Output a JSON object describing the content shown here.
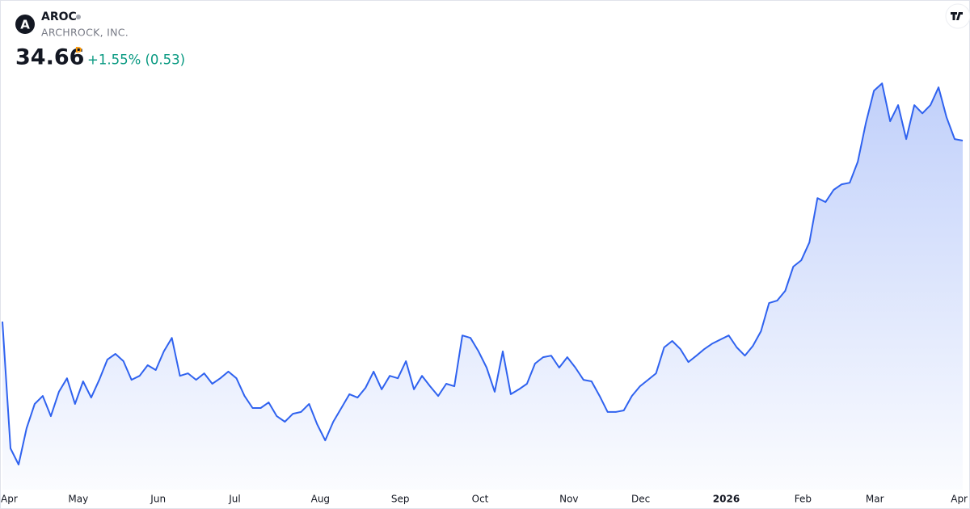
{
  "chart_data": {
    "type": "area",
    "logo": "A",
    "symbol": "AROC",
    "title": "ARCHROCK, INC.",
    "price": "34.66",
    "interval": "D",
    "change": "+1.55% (0.53)",
    "values": [
      26.5,
      20.79,
      20.06,
      21.7,
      22.79,
      23.15,
      22.24,
      23.34,
      23.95,
      22.79,
      23.81,
      23.08,
      23.88,
      24.79,
      25.05,
      24.72,
      23.88,
      24.06,
      24.54,
      24.32,
      25.16,
      25.77,
      24.06,
      24.17,
      23.88,
      24.17,
      23.7,
      23.95,
      24.25,
      23.95,
      23.15,
      22.61,
      22.61,
      22.86,
      22.24,
      21.99,
      22.35,
      22.43,
      22.79,
      21.88,
      21.15,
      21.99,
      22.61,
      23.23,
      23.08,
      23.52,
      24.25,
      23.45,
      24.06,
      23.95,
      24.72,
      23.45,
      24.06,
      23.59,
      23.15,
      23.7,
      23.59,
      25.88,
      25.77,
      25.16,
      24.43,
      23.34,
      25.16,
      23.23,
      23.45,
      23.7,
      24.61,
      24.9,
      24.97,
      24.43,
      24.9,
      24.43,
      23.88,
      23.81,
      23.15,
      22.43,
      22.43,
      22.5,
      23.15,
      23.59,
      23.88,
      24.17,
      25.34,
      25.63,
      25.27,
      24.68,
      24.97,
      25.27,
      25.52,
      25.7,
      25.88,
      25.34,
      24.97,
      25.41,
      26.07,
      27.34,
      27.45,
      27.89,
      28.98,
      29.27,
      30.07,
      32.07,
      31.89,
      32.44,
      32.69,
      32.76,
      33.71,
      35.46,
      36.91,
      37.24,
      35.53,
      36.26,
      34.73,
      36.26,
      35.89,
      36.26,
      37.06,
      35.71,
      34.73,
      34.66
    ],
    "color": "#2f62ef",
    "xlim": [
      0,
      119
    ],
    "ylim": [
      19.15,
      37.72
    ],
    "xticks": [
      {
        "value": 0.8,
        "label": "Apr"
      },
      {
        "value": 9.4,
        "label": "May"
      },
      {
        "value": 19.3,
        "label": "Jun"
      },
      {
        "value": 28.8,
        "label": "Jul"
      },
      {
        "value": 39.4,
        "label": "Aug"
      },
      {
        "value": 49.3,
        "label": "Sep"
      },
      {
        "value": 59.2,
        "label": "Oct"
      },
      {
        "value": 70.2,
        "label": "Nov"
      },
      {
        "value": 79.1,
        "label": "Dec"
      },
      {
        "value": 89.7,
        "label": "2026"
      },
      {
        "value": 99.2,
        "label": "Feb"
      },
      {
        "value": 108.1,
        "label": "Mar"
      },
      {
        "value": 118.5,
        "label": "Apr"
      }
    ]
  }
}
